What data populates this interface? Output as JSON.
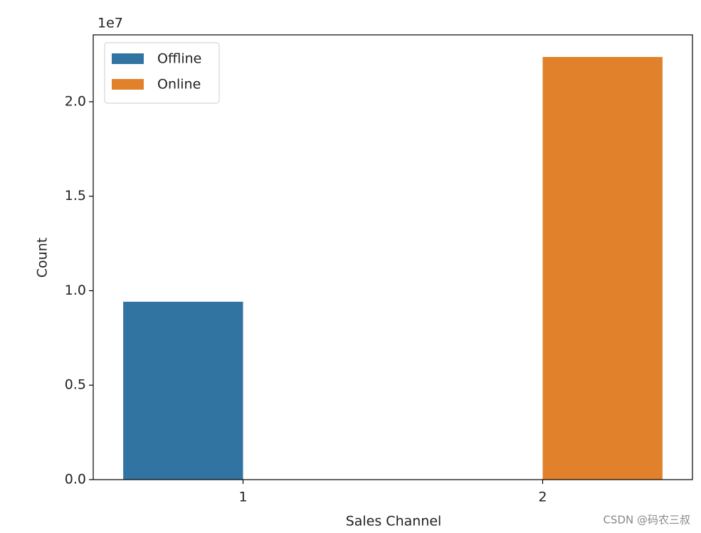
{
  "chart_data": {
    "type": "bar",
    "x_label": "Sales Channel",
    "y_label": "Count",
    "y_offset_label": "1e7",
    "categories": [
      "1",
      "2"
    ],
    "series": [
      {
        "name": "Offline",
        "color": "#3274a1",
        "values": [
          9416000,
          null
        ]
      },
      {
        "name": "Online",
        "color": "#e1812c",
        "values": [
          null,
          22370000
        ]
      }
    ],
    "ylim": [
      0,
      23540000
    ],
    "yticks": [
      {
        "value": 0,
        "label": "0.0"
      },
      {
        "value": 5000000,
        "label": "0.5"
      },
      {
        "value": 10000000,
        "label": "1.0"
      },
      {
        "value": 15000000,
        "label": "1.5"
      },
      {
        "value": 20000000,
        "label": "2.0"
      }
    ],
    "grid": false,
    "legend": "upper-left"
  },
  "watermark": "CSDN @码农三叔"
}
